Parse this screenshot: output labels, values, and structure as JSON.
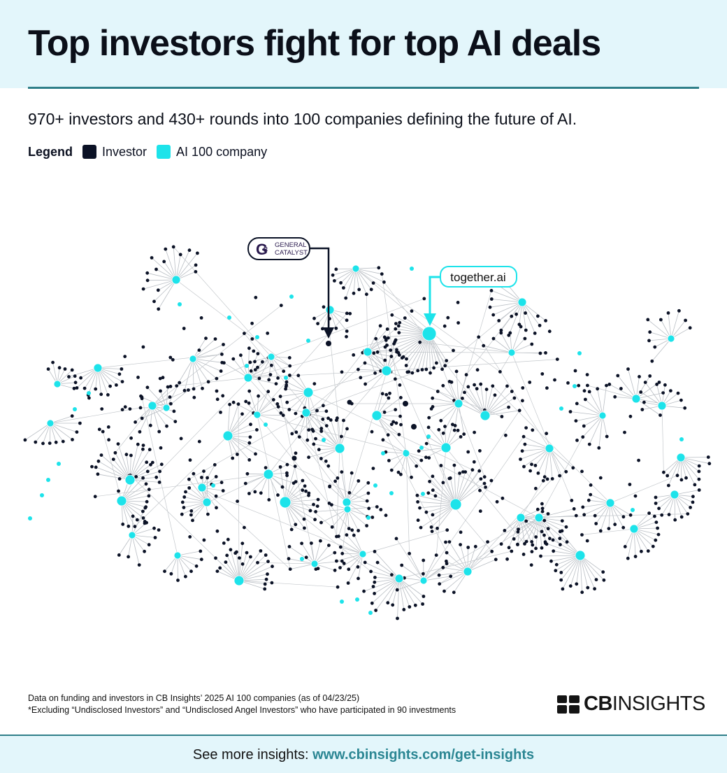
{
  "title": "Top investors fight for top AI deals",
  "subtitle": "970+ investors and 430+ rounds into 100 companies defining the future of AI.",
  "legend": {
    "title": "Legend",
    "investor_label": "Investor",
    "company_label": "AI 100 company",
    "investor_color": "#0b1226",
    "company_color": "#1de3ea"
  },
  "callouts": {
    "general_catalyst": {
      "line1": "GENERAL",
      "line2": "CATALYST"
    },
    "together_ai": {
      "label": "together.ai"
    }
  },
  "notes": {
    "line1": "Data on funding and investors in CB Insights’ 2025 AI 100 companies (as of 04/23/25)",
    "line2": "*Excluding “Undisclosed Investors” and “Undisclosed Angel Investors” who have participated in 90 investments"
  },
  "brand": {
    "part1": "CB",
    "part2": "INSIGHTS"
  },
  "footer": {
    "prefix": "See more insights:",
    "link": "www.cbinsights.com/get-insights"
  }
}
